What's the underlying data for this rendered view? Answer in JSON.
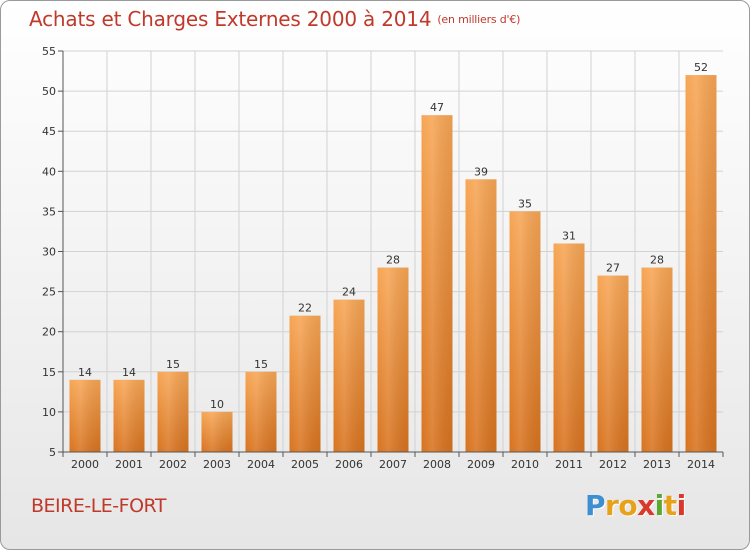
{
  "chart_data": {
    "type": "bar",
    "title": "Achats et Charges Externes 2000 à 2014",
    "subtitle": "(en milliers d'€)",
    "categories": [
      "2000",
      "2001",
      "2002",
      "2003",
      "2004",
      "2005",
      "2006",
      "2007",
      "2008",
      "2009",
      "2010",
      "2011",
      "2012",
      "2013",
      "2014"
    ],
    "values": [
      14,
      14,
      15,
      10,
      15,
      22,
      24,
      28,
      47,
      39,
      35,
      31,
      27,
      28,
      52
    ],
    "ylim": [
      5,
      55
    ],
    "yticks": [
      5,
      10,
      15,
      20,
      25,
      30,
      35,
      40,
      45,
      50,
      55
    ],
    "grid": true,
    "bar_color": "#f0933c"
  },
  "footer": {
    "location": "BEIRE-LE-FORT",
    "logo_letters": [
      "P",
      "r",
      "o",
      "x",
      "i",
      "t",
      "i"
    ],
    "logo_colors": [
      "#3d8fd1",
      "#e8a21a",
      "#e8a21a",
      "#d9392b",
      "#5aa832",
      "#e8a21a",
      "#d9392b"
    ]
  }
}
